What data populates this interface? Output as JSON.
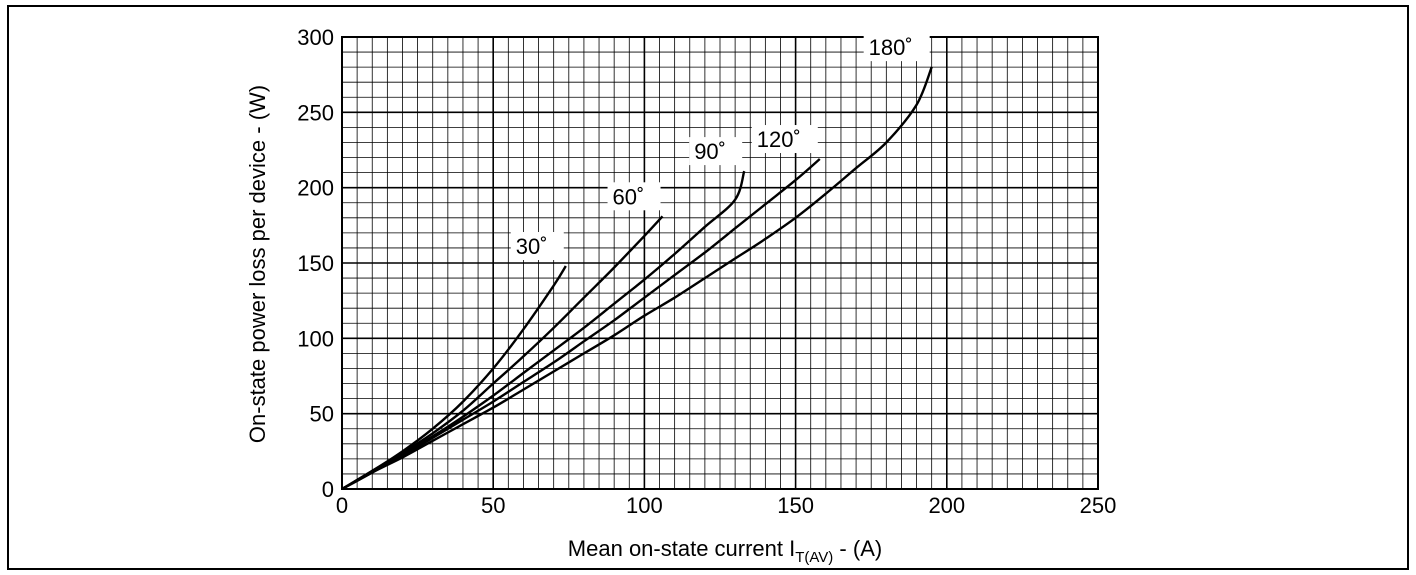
{
  "chart_data": {
    "type": "line",
    "xlabel": {
      "main": "Mean on-state current I",
      "sub": "T(AV)",
      "unit": " - (A)"
    },
    "ylabel": "On-state power loss per device - (W)",
    "xlim": [
      0,
      250
    ],
    "ylim": [
      0,
      300
    ],
    "x_ticks": [
      "0",
      "50",
      "100",
      "150",
      "200",
      "250"
    ],
    "y_ticks": [
      "0",
      "50",
      "100",
      "150",
      "200",
      "250",
      "300"
    ],
    "grid": {
      "major_x": 50,
      "major_y": 50,
      "minor_x": 5,
      "minor_y": 10
    },
    "legend": "inline labels",
    "series": [
      {
        "name": "30˚",
        "points": [
          [
            0,
            0
          ],
          [
            10,
            12
          ],
          [
            20,
            25
          ],
          [
            30,
            40
          ],
          [
            40,
            58
          ],
          [
            50,
            80
          ],
          [
            60,
            106
          ],
          [
            70,
            135
          ],
          [
            74,
            148
          ]
        ]
      },
      {
        "name": "60˚",
        "points": [
          [
            0,
            0
          ],
          [
            10,
            12
          ],
          [
            20,
            24
          ],
          [
            30,
            37
          ],
          [
            40,
            52
          ],
          [
            50,
            70
          ],
          [
            60,
            88
          ],
          [
            70,
            107
          ],
          [
            80,
            127
          ],
          [
            90,
            147
          ],
          [
            100,
            168
          ],
          [
            106,
            181
          ]
        ]
      },
      {
        "name": "90˚",
        "points": [
          [
            0,
            0
          ],
          [
            10,
            11
          ],
          [
            20,
            23
          ],
          [
            30,
            35
          ],
          [
            40,
            48
          ],
          [
            50,
            62
          ],
          [
            60,
            77
          ],
          [
            70,
            92
          ],
          [
            80,
            107
          ],
          [
            90,
            123
          ],
          [
            100,
            139
          ],
          [
            110,
            156
          ],
          [
            120,
            174
          ],
          [
            130,
            192
          ],
          [
            133,
            211
          ]
        ]
      },
      {
        "name": "120˚",
        "points": [
          [
            0,
            0
          ],
          [
            10,
            11
          ],
          [
            20,
            22
          ],
          [
            30,
            34
          ],
          [
            40,
            46
          ],
          [
            50,
            58
          ],
          [
            60,
            71
          ],
          [
            70,
            84
          ],
          [
            80,
            98
          ],
          [
            90,
            112
          ],
          [
            100,
            127
          ],
          [
            110,
            142
          ],
          [
            120,
            157
          ],
          [
            130,
            173
          ],
          [
            140,
            189
          ],
          [
            150,
            205
          ],
          [
            158,
            219
          ]
        ]
      },
      {
        "name": "180˚",
        "points": [
          [
            0,
            0
          ],
          [
            10,
            11
          ],
          [
            20,
            21
          ],
          [
            30,
            32
          ],
          [
            40,
            43
          ],
          [
            50,
            54
          ],
          [
            60,
            66
          ],
          [
            70,
            78
          ],
          [
            80,
            90
          ],
          [
            90,
            102
          ],
          [
            100,
            115
          ],
          [
            110,
            127
          ],
          [
            120,
            140
          ],
          [
            130,
            153
          ],
          [
            140,
            166
          ],
          [
            150,
            180
          ],
          [
            160,
            196
          ],
          [
            170,
            213
          ],
          [
            180,
            230
          ],
          [
            190,
            255
          ],
          [
            195,
            280
          ]
        ]
      }
    ],
    "colors": {
      "line": "#000000",
      "grid": "#000000",
      "background": "#ffffff"
    }
  }
}
